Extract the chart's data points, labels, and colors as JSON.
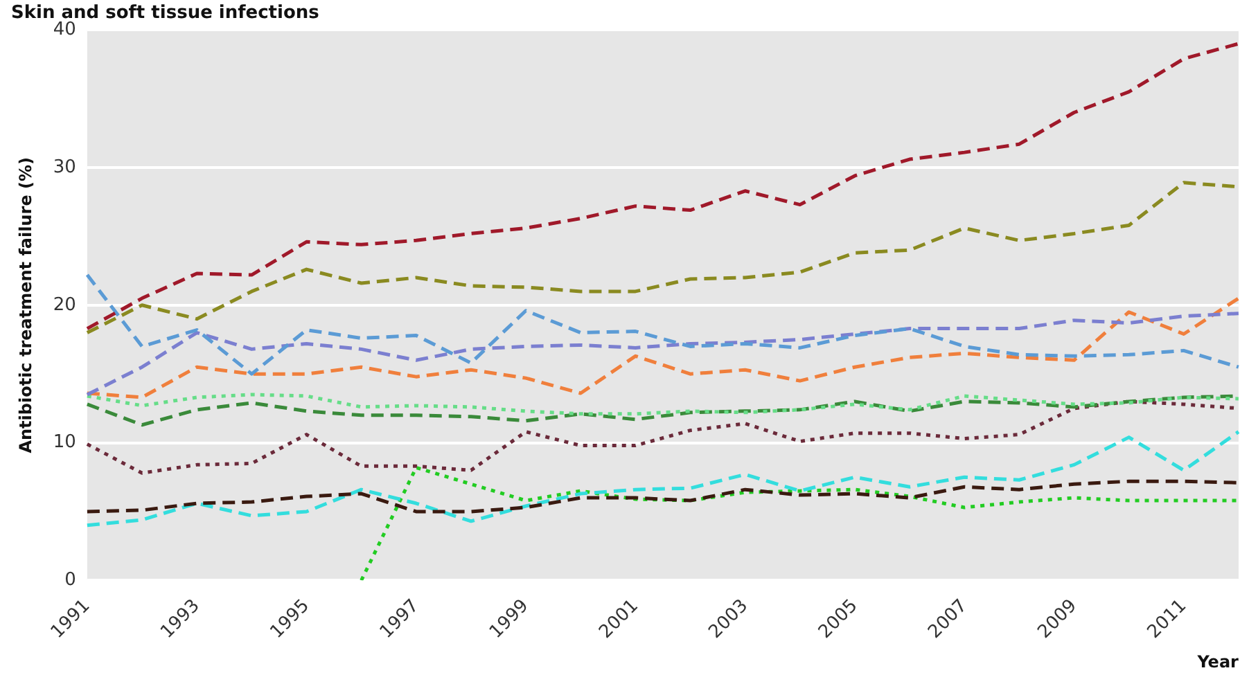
{
  "chart_data": {
    "type": "line",
    "title": "Skin and soft tissue infections",
    "ylabel": "Antibiotic treatment failure (%)",
    "xlabel": "Year",
    "categories": [
      "1991",
      null,
      "1993",
      null,
      "1995",
      null,
      "1997",
      null,
      "1999",
      null,
      "2001",
      null,
      "2003",
      null,
      "2005",
      null,
      "2007",
      null,
      "2009",
      null,
      "2011",
      null
    ],
    "ylim": [
      0,
      40
    ],
    "yticks": [
      0,
      10,
      20,
      30,
      40
    ],
    "grid": "y",
    "legend": false,
    "marker": "none",
    "series": [
      {
        "color": "#a0192a",
        "line_style": "dashed",
        "values": [
          18.3,
          20.5,
          22.3,
          22.2,
          24.6,
          24.4,
          24.7,
          25.2,
          25.6,
          26.3,
          27.2,
          26.9,
          28.3,
          27.3,
          29.4,
          30.6,
          31.1,
          31.7,
          34.0,
          35.5,
          37.9,
          39.0
        ]
      },
      {
        "color": "#8a8a20",
        "line_style": "dashed",
        "values": [
          18.0,
          20.0,
          19.0,
          21.0,
          22.6,
          21.6,
          22.0,
          21.4,
          21.3,
          21.0,
          21.0,
          21.9,
          22.0,
          22.4,
          23.8,
          24.0,
          25.6,
          24.7,
          25.2,
          25.8,
          28.9,
          28.6
        ]
      },
      {
        "color": "#5b9bd5",
        "line_style": "dashed",
        "values": [
          22.2,
          17.0,
          18.2,
          15.0,
          18.2,
          17.6,
          17.8,
          15.8,
          19.6,
          18.0,
          18.1,
          17.0,
          17.2,
          16.9,
          17.8,
          18.3,
          17.0,
          16.4,
          16.3,
          16.4,
          16.7,
          15.5
        ]
      },
      {
        "color": "#7b7fd0",
        "line_style": "dashed",
        "values": [
          13.5,
          15.5,
          18.0,
          16.8,
          17.2,
          16.8,
          16.0,
          16.8,
          17.0,
          17.1,
          16.9,
          17.2,
          17.3,
          17.5,
          17.9,
          18.3,
          18.3,
          18.3,
          18.9,
          18.7,
          19.2,
          19.4
        ]
      },
      {
        "color": "#f07f3c",
        "line_style": "dashed",
        "values": [
          13.6,
          13.3,
          15.5,
          15.0,
          15.0,
          15.5,
          14.8,
          15.3,
          14.7,
          13.6,
          16.3,
          15.0,
          15.3,
          14.5,
          15.5,
          16.2,
          16.5,
          16.2,
          16.0,
          19.5,
          17.9,
          20.5
        ]
      },
      {
        "color": "#66dd88",
        "line_style": "dotted",
        "values": [
          13.4,
          12.7,
          13.3,
          13.5,
          13.4,
          12.6,
          12.7,
          12.6,
          12.3,
          12.1,
          12.1,
          12.3,
          12.2,
          12.4,
          12.8,
          12.4,
          13.4,
          13.1,
          12.8,
          12.9,
          13.3,
          13.2
        ]
      },
      {
        "color": "#3a8a3a",
        "line_style": "dashed",
        "values": [
          12.8,
          11.3,
          12.4,
          12.9,
          12.3,
          12.0,
          12.0,
          11.9,
          11.6,
          12.1,
          11.7,
          12.2,
          12.3,
          12.4,
          13.0,
          12.3,
          13.0,
          12.9,
          12.6,
          13.0,
          13.3,
          13.4
        ]
      },
      {
        "color": "#6b2a3a",
        "line_style": "dotted",
        "values": [
          9.9,
          7.8,
          8.4,
          8.5,
          10.6,
          8.3,
          8.3,
          8.0,
          10.8,
          9.8,
          9.8,
          10.9,
          11.4,
          10.1,
          10.7,
          10.7,
          10.3,
          10.6,
          12.5,
          13.0,
          12.8,
          12.5
        ]
      },
      {
        "color": "#3a1a10",
        "line_style": "dashed",
        "values": [
          5.0,
          5.1,
          5.6,
          5.7,
          6.1,
          6.3,
          5.0,
          5.0,
          5.3,
          6.0,
          6.0,
          5.8,
          6.6,
          6.2,
          6.3,
          6.0,
          6.8,
          6.6,
          7.0,
          7.2,
          7.2,
          7.1
        ]
      },
      {
        "color": "#33dddd",
        "line_style": "dashed",
        "values": [
          4.0,
          4.4,
          5.6,
          4.7,
          5.0,
          6.6,
          5.6,
          4.3,
          5.4,
          6.3,
          6.6,
          6.7,
          7.7,
          6.5,
          7.5,
          6.8,
          7.5,
          7.3,
          8.4,
          10.4,
          8.0,
          10.8
        ]
      },
      {
        "color": "#22cc22",
        "line_style": "dotted",
        "values": [
          null,
          null,
          null,
          null,
          null,
          0,
          8.2,
          7.0,
          5.8,
          6.5,
          5.9,
          5.8,
          6.4,
          6.5,
          6.6,
          6.1,
          5.3,
          5.7,
          6.0,
          5.8,
          5.8,
          5.8
        ]
      }
    ]
  }
}
